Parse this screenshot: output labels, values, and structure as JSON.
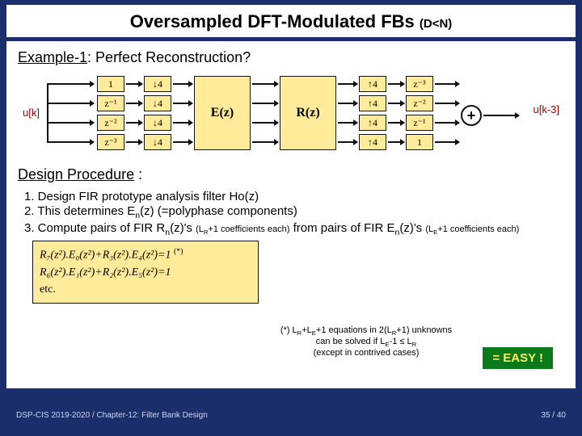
{
  "title": {
    "main": "Oversampled DFT-Modulated FBs ",
    "sub": "(D<N)"
  },
  "example_heading": {
    "prefix": "Example-1",
    "rest": ": Perfect Reconstruction?"
  },
  "diagram": {
    "input_label": "u[k]",
    "output_label": "u[k-3]",
    "left_delays": [
      "1",
      "z⁻¹",
      "z⁻²",
      "z⁻³"
    ],
    "down": [
      "↓4",
      "↓4",
      "↓4",
      "↓4"
    ],
    "E_label": "E(z)",
    "R_label": "R(z)",
    "up": [
      "↑4",
      "↑4",
      "↑4",
      "↑4"
    ],
    "right_delays": [
      "z⁻³",
      "z⁻²",
      "z⁻¹",
      "1"
    ],
    "plus": "+"
  },
  "design_heading": {
    "text": "Design Procedure",
    "tail": " :"
  },
  "steps": {
    "s1": "1.   Design FIR prototype analysis filter Ho(z)",
    "s2_a": "2.   This determines E",
    "s2_b": "n",
    "s2_c": "(z) (=polyphase components)",
    "s3_a": "3.   Compute pairs of FIR R",
    "s3_b": "n",
    "s3_c": "(z)'s ",
    "s3_sm1": "(L",
    "s3_sm1b": "R",
    "s3_sm1c": "+1 coefficients each)",
    "s3_d": " from pairs of FIR E",
    "s3_e": "n",
    "s3_f": "(z)'s ",
    "s3_sm2": "(L",
    "s3_sm2b": "E",
    "s3_sm2c": "+1 coefficients each)"
  },
  "equations": {
    "line1": "R₇(z²).E₀(z²)+R₃(z²).E₄(z²)=1",
    "star": "(*)",
    "line2": "R₆(z²).E₁(z²)+R₂(z²).E₅(z²)=1",
    "line3": "etc."
  },
  "side_note": {
    "l1a": "(*) L",
    "l1b": "R",
    "l1c": "+L",
    "l1d": "E",
    "l1e": "+1 equations in 2(L",
    "l1f": "R",
    "l1g": "+1) unknowns",
    "l2a": "can be solved if L",
    "l2b": "E",
    "l2c": "-1 ≤ L",
    "l2d": "R",
    "l3": "(except in contrived cases)"
  },
  "easy": "= EASY !",
  "footer": "DSP-CIS 2019-2020 / Chapter-12: Filter Bank Design",
  "pager": "35 / 40"
}
